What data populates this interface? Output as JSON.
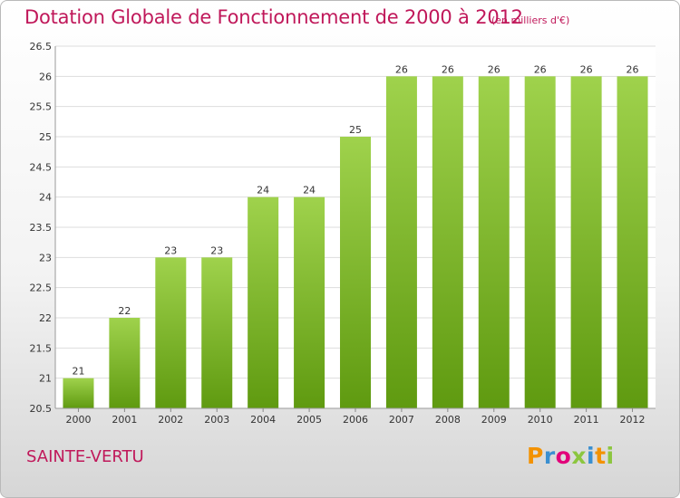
{
  "header": {
    "title": "Dotation Globale de Fonctionnement de 2000 à 2012",
    "unit_note": "(en milliers d'€)"
  },
  "footer": {
    "commune": "SAINTE-VERTU",
    "logo_letters": [
      "P",
      "r",
      "o",
      "x",
      "i",
      "t",
      "i"
    ]
  },
  "colors": {
    "title": "#c0185a",
    "bar_top": "#9fd24c",
    "bar_bottom": "#5f9a10",
    "grid": "#dddddd",
    "logo_letters": [
      "#f39200",
      "#3a8fd0",
      "#e2007a",
      "#8cc63f",
      "#3a8fd0",
      "#f39200",
      "#8cc63f"
    ]
  },
  "chart_data": {
    "type": "bar",
    "categories": [
      "2000",
      "2001",
      "2002",
      "2003",
      "2004",
      "2005",
      "2006",
      "2007",
      "2008",
      "2009",
      "2010",
      "2011",
      "2012"
    ],
    "values": [
      21,
      22,
      23,
      23,
      24,
      24,
      25,
      26,
      26,
      26,
      26,
      26,
      26
    ],
    "value_labels": [
      "21",
      "22",
      "23",
      "23",
      "24",
      "24",
      "25",
      "26",
      "26",
      "26",
      "26",
      "26",
      "26"
    ],
    "y_ticks": [
      "20.5",
      "21",
      "21.5",
      "22",
      "22.5",
      "23",
      "23.5",
      "24",
      "24.5",
      "25",
      "25.5",
      "26",
      "26.5"
    ],
    "ylim": [
      20.5,
      26.5
    ],
    "grid": true,
    "legend": "none"
  }
}
